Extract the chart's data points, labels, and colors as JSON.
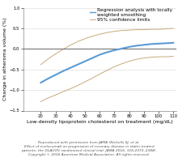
{
  "xlabel": "Low-density lipoprotein cholesterol on treatment (mg/dL)",
  "ylabel": "Change in atheroma volume (%)",
  "xlim": [
    8,
    112
  ],
  "ylim": [
    -1.5,
    1.0
  ],
  "xticks": [
    20,
    30,
    40,
    50,
    60,
    70,
    80,
    90,
    100,
    110
  ],
  "yticks": [
    -1.5,
    -1.0,
    -0.5,
    0.0,
    0.5,
    1.0
  ],
  "main_color": "#5b9bd5",
  "ci_color": "#c8a97a",
  "zero_line_color": "#666666",
  "background_color": "#ffffff",
  "grid_color": "#d8d8d8",
  "x_main": [
    20,
    25,
    30,
    35,
    40,
    45,
    50,
    55,
    60,
    65,
    70,
    75,
    80,
    85,
    90,
    95,
    100,
    105,
    110
  ],
  "y_main": [
    -0.82,
    -0.72,
    -0.63,
    -0.54,
    -0.46,
    -0.38,
    -0.3,
    -0.22,
    -0.14,
    -0.08,
    -0.03,
    0.01,
    0.05,
    0.08,
    0.1,
    0.12,
    0.13,
    0.14,
    0.15
  ],
  "y_ci_upper": [
    -0.38,
    -0.24,
    -0.12,
    -0.01,
    0.09,
    0.18,
    0.25,
    0.31,
    0.36,
    0.4,
    0.43,
    0.45,
    0.46,
    0.47,
    0.47,
    0.48,
    0.48,
    0.49,
    0.5
  ],
  "y_ci_lower": [
    -1.28,
    -1.19,
    -1.12,
    -1.04,
    -0.97,
    -0.89,
    -0.8,
    -0.71,
    -0.61,
    -0.52,
    -0.43,
    -0.36,
    -0.3,
    -0.25,
    -0.22,
    -0.2,
    -0.19,
    -0.19,
    -0.18
  ],
  "legend_main_label": "Regression analysis with locally\nweighted smoothing",
  "legend_ci_label": "95% confidence limits",
  "legend_fontsize": 4.2,
  "axis_label_fontsize": 4.5,
  "tick_fontsize": 3.8,
  "caption": "Reproduced with permission from JAMA (Nicholls SJ, et al.\nEffect of evolocumab on progression of coronary disease in statin-treated\npatients: the GLAGOV randomized clinical trial. JAMA 2016; 316:2373–2384).\nCopyright © 2016 American Medical Association. All rights reserved.",
  "caption_fontsize": 3.2
}
